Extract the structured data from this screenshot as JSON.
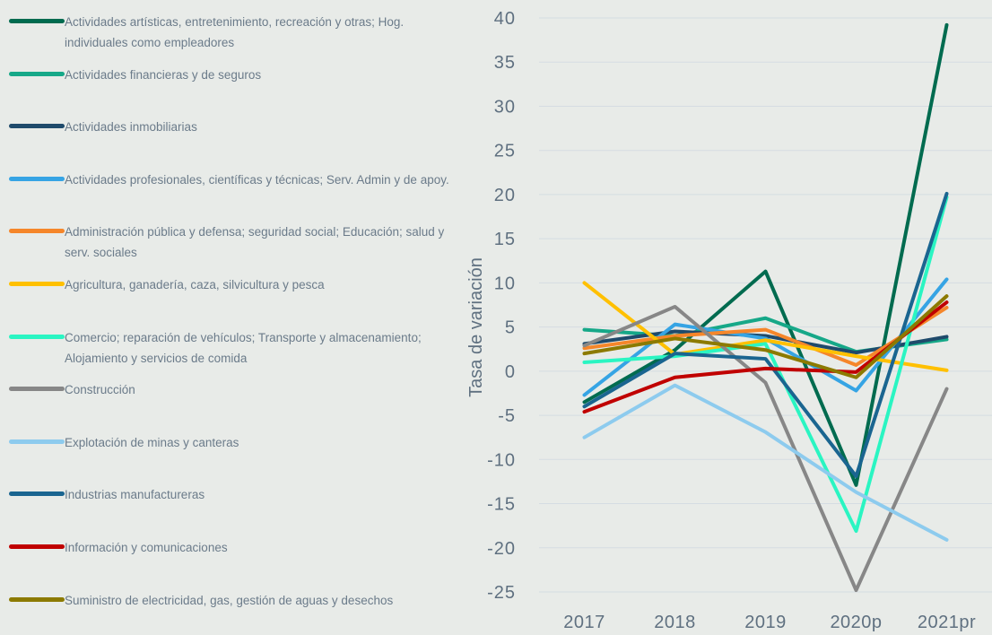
{
  "chart_data": {
    "type": "line",
    "y_label": "Tasa de variación",
    "categories": [
      "2017",
      "2018",
      "2019",
      "2020p",
      "2021pr"
    ],
    "ylim": [
      -25,
      40
    ],
    "yticks": [
      -25,
      -20,
      -15,
      -10,
      -5,
      0,
      5,
      10,
      15,
      20,
      25,
      30,
      35,
      40
    ],
    "grid": true,
    "legend": "left",
    "series": [
      {
        "name": "Actividades artísticas, entretenimiento, recreación y otras; Hog. individuales como empleadores",
        "color": "#006b4f",
        "values": [
          -3.5,
          2.4,
          11.3,
          -12.9,
          39.2
        ]
      },
      {
        "name": "Actividades financieras y de seguros",
        "color": "#16a888",
        "values": [
          4.7,
          4.0,
          6.0,
          2.2,
          3.6
        ]
      },
      {
        "name": "Actividades inmobiliarias",
        "color": "#1f4a6b",
        "values": [
          3.1,
          4.5,
          4.0,
          2.1,
          3.9
        ]
      },
      {
        "name": "Actividades profesionales, científicas y técnicas; Serv. Admin y de apoy.",
        "color": "#36a4e4",
        "values": [
          -2.7,
          5.3,
          3.7,
          -2.2,
          10.4
        ]
      },
      {
        "name": "Administración pública y defensa; seguridad social; Educación; salud y serv. sociales",
        "color": "#f5862a",
        "values": [
          2.6,
          4.0,
          4.7,
          0.7,
          7.2
        ]
      },
      {
        "name": "Agricultura, ganadería, caza, silvicultura y pesca",
        "color": "#ffc000",
        "values": [
          10.0,
          1.9,
          3.5,
          1.7,
          0.1
        ]
      },
      {
        "name": "Comercio; reparación de vehículos; Transporte y almacenamiento; Alojamiento y servicios de comida",
        "color": "#2af5c2",
        "values": [
          1.0,
          1.7,
          3.1,
          -18.1,
          19.7
        ]
      },
      {
        "name": "Construcción",
        "color": "#878787",
        "values": [
          2.9,
          7.3,
          -1.3,
          -24.8,
          -2.0
        ]
      },
      {
        "name": "Explotación de minas y canteras",
        "color": "#8dcbee",
        "values": [
          -7.5,
          -1.6,
          -6.9,
          -13.7,
          -19.1
        ]
      },
      {
        "name": "Industrias manufactureras",
        "color": "#1a6590",
        "values": [
          -4.0,
          2.0,
          1.4,
          -11.9,
          20.1
        ]
      },
      {
        "name": "Información y comunicaciones",
        "color": "#c00000",
        "values": [
          -4.6,
          -0.7,
          0.3,
          -0.1,
          7.8
        ]
      },
      {
        "name": "Suministro de electricidad, gas, gestión de aguas y desechos",
        "color": "#8c7a00",
        "values": [
          2.0,
          3.7,
          2.4,
          -0.7,
          8.5
        ]
      }
    ]
  }
}
